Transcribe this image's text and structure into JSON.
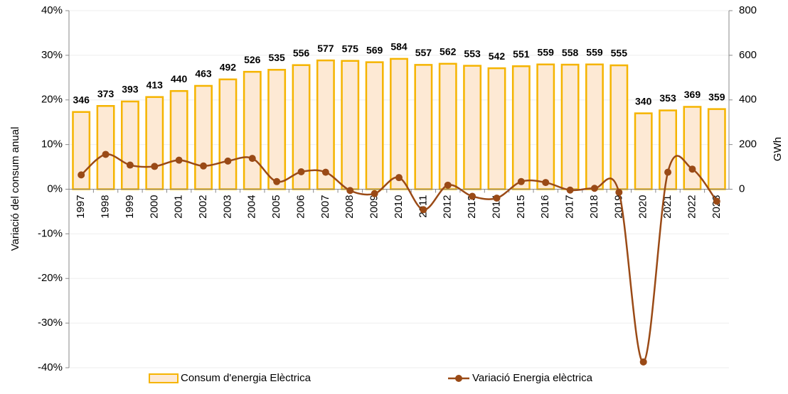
{
  "chart_data": {
    "type": "bar-line",
    "y_label": "Variació del consum anual",
    "y2_label": "GWh",
    "categories": [
      "1997",
      "1998",
      "1999",
      "2000",
      "2001",
      "2002",
      "2003",
      "2004",
      "2005",
      "2006",
      "2007",
      "2008",
      "2009",
      "2010",
      "2011",
      "2012",
      "2013",
      "2014",
      "2015",
      "2016",
      "2017",
      "2018",
      "2019",
      "2020",
      "2021",
      "2022",
      "2023"
    ],
    "series": [
      {
        "name": "Consum d'energia Elèctrica",
        "type": "bar",
        "axis": "y2",
        "color": "#fde9d4",
        "edge_color": "#f5b400",
        "values": [
          346,
          373,
          393,
          413,
          440,
          463,
          492,
          526,
          535,
          556,
          577,
          575,
          569,
          584,
          557,
          562,
          553,
          542,
          551,
          559,
          558,
          559,
          555,
          340,
          353,
          369,
          359
        ]
      },
      {
        "name": "Variació Energia elèctrica",
        "type": "line",
        "axis": "y",
        "color": "#9a4a16",
        "values": [
          3.2,
          7.8,
          5.4,
          5.1,
          6.5,
          5.2,
          6.3,
          6.9,
          1.7,
          3.9,
          3.8,
          -0.3,
          -1.0,
          2.6,
          -4.6,
          0.9,
          -1.6,
          -2.0,
          1.7,
          1.5,
          -0.2,
          0.2,
          -0.7,
          -38.7,
          3.8,
          4.5,
          -2.7
        ]
      }
    ],
    "ylim": [
      -40,
      40
    ],
    "yticks": [
      {
        "value": -40,
        "label": "-40%"
      },
      {
        "value": -30,
        "label": "-30%"
      },
      {
        "value": -20,
        "label": "-20%"
      },
      {
        "value": -10,
        "label": "-10%"
      },
      {
        "value": 0,
        "label": "0%"
      },
      {
        "value": 10,
        "label": "10%"
      },
      {
        "value": 20,
        "label": "20%"
      },
      {
        "value": 30,
        "label": "30%"
      },
      {
        "value": 40,
        "label": "40%"
      }
    ],
    "y2lim": [
      -800,
      800
    ],
    "y2ticks": [
      0,
      200,
      400,
      600,
      800
    ],
    "grid": true,
    "legend": "bottom"
  }
}
